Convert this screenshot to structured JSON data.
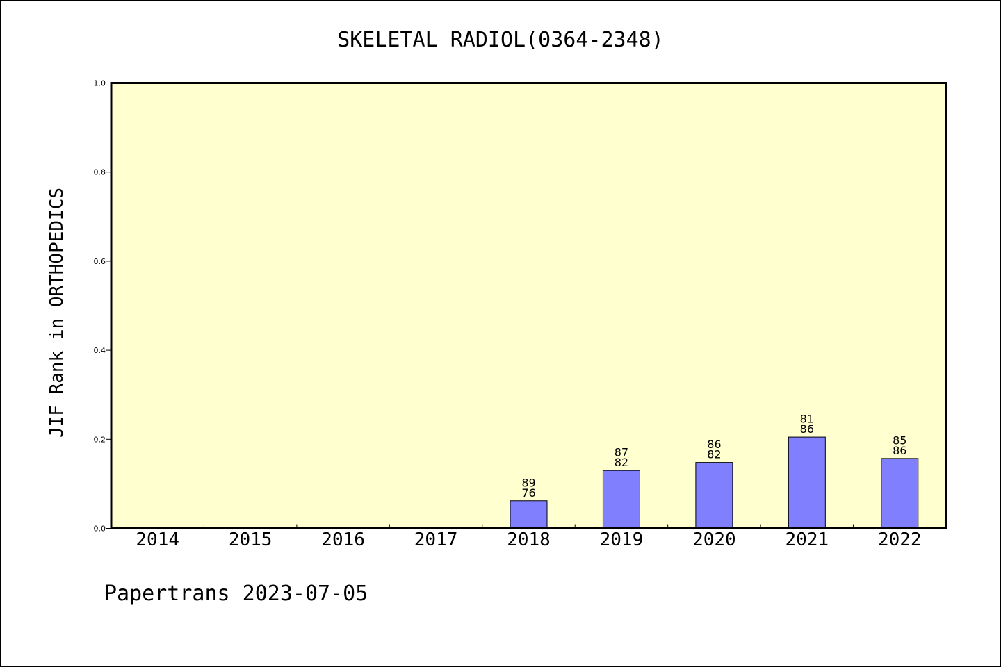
{
  "chart_data": {
    "type": "bar",
    "title": "SKELETAL RADIOL(0364-2348)",
    "xlabel": "",
    "ylabel": "JIF Rank in ORTHOPEDICS",
    "ylim": [
      0,
      1.0
    ],
    "yticks": [
      "0.0",
      "0.2",
      "0.4",
      "0.6",
      "0.8",
      "1.0"
    ],
    "categories": [
      "2014",
      "2015",
      "2016",
      "2017",
      "2018",
      "2019",
      "2020",
      "2021",
      "2022"
    ],
    "values": [
      null,
      null,
      null,
      null,
      0.062,
      0.13,
      0.148,
      0.205,
      0.157
    ],
    "bar_labels": [
      null,
      null,
      null,
      null,
      [
        "89",
        "76"
      ],
      [
        "87",
        "82"
      ],
      [
        "86",
        "82"
      ],
      [
        "81",
        "86"
      ],
      [
        "85",
        "86"
      ]
    ],
    "grid": false,
    "colors": {
      "bar": "#8080ff",
      "plot_background": "#ffffd0",
      "axis": "#000000"
    }
  },
  "footer": "Papertrans 2023-07-05"
}
